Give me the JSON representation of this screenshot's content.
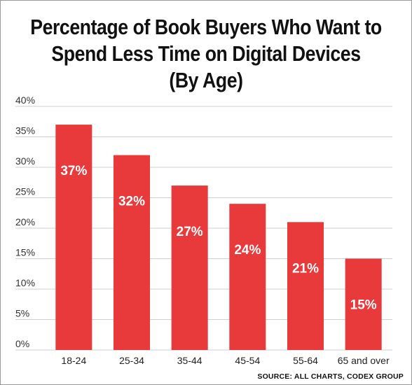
{
  "chart_data": {
    "type": "bar",
    "title_lines": [
      "Percentage of Book Buyers Who Want to",
      "Spend Less Time on Digital Devices",
      "(By Age)"
    ],
    "categories": [
      "18-24",
      "25-34",
      "35-44",
      "45-54",
      "55-64",
      "65 and over"
    ],
    "values": [
      37,
      32,
      27,
      24,
      21,
      15
    ],
    "data_labels": [
      "37%",
      "32%",
      "27%",
      "24%",
      "21%",
      "15%"
    ],
    "ylim": [
      0,
      40
    ],
    "yticks": [
      0,
      5,
      10,
      15,
      20,
      25,
      30,
      35,
      40
    ],
    "ytick_labels": [
      "0%",
      "5%",
      "10%",
      "15%",
      "20%",
      "25%",
      "30%",
      "35%",
      "40%"
    ],
    "xlabel": "",
    "ylabel": "",
    "grid": true,
    "bar_color": "#e8393b",
    "grid_color": "#cfcfcf"
  },
  "source": "SOURCE: ALL CHARTS, CODEX GROUP"
}
